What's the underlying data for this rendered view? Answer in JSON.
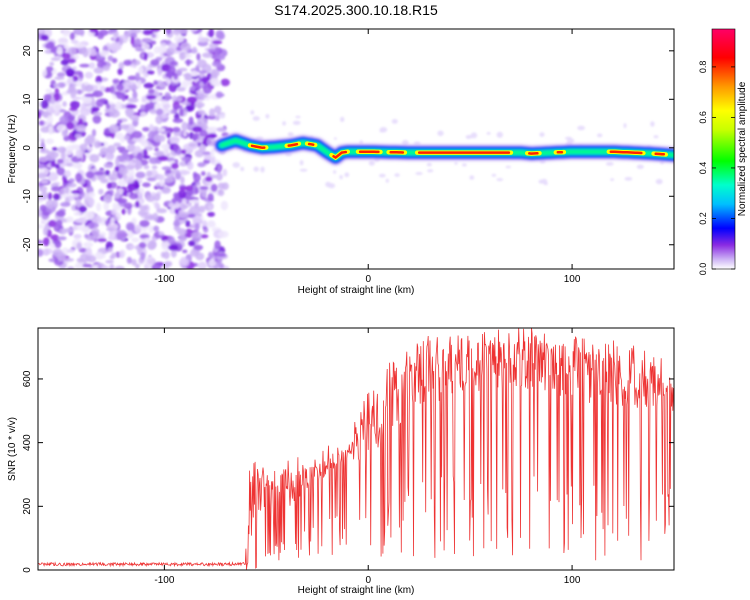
{
  "title": "S174.2025.300.10.18.R15",
  "chart_data": [
    {
      "type": "heatmap",
      "name": "spectrogram",
      "xlabel": "Height of straight line (km)",
      "ylabel": "Frequency (Hz)",
      "xlim": [
        -162,
        150
      ],
      "ylim": [
        -25,
        24.5
      ],
      "xticks": [
        -100,
        0,
        100
      ],
      "yticks": [
        -20,
        -10,
        0,
        10,
        20
      ],
      "xticklabels": [
        "-100",
        "0",
        "100"
      ],
      "yticklabels": [
        "-20",
        "-10",
        "0",
        "10",
        "20"
      ],
      "noise_region_x": [
        -162,
        -72
      ],
      "signal_start_x": -72,
      "ridge": {
        "x": [
          -72,
          -65,
          -58,
          -52,
          -45,
          -38,
          -32,
          -25,
          -20,
          -16,
          -13,
          -10,
          -5,
          0,
          20,
          50,
          75,
          80,
          90,
          100,
          120,
          140,
          150
        ],
        "freq": [
          0.5,
          1.5,
          0.5,
          0.0,
          0.2,
          0.5,
          1.0,
          0.5,
          -1.0,
          -2.0,
          -1.0,
          -0.8,
          -0.8,
          -0.8,
          -1.0,
          -1.0,
          -1.0,
          -1.2,
          -1.0,
          -0.8,
          -0.8,
          -1.2,
          -1.5
        ]
      },
      "colorbar": {
        "label": "Normalized spectral amplitude",
        "range": [
          0,
          0.95
        ],
        "ticks": [
          0.0,
          0.2,
          0.4,
          0.6,
          0.8
        ],
        "ticklabels": [
          "0.0",
          "0.2",
          "0.4",
          "0.6",
          "0.8"
        ],
        "colors": [
          "#ffffff",
          "#cdb4f5",
          "#8a2be2",
          "#0000ff",
          "#00bfff",
          "#00ffcc",
          "#00ff00",
          "#c8ff00",
          "#ffff00",
          "#ff9900",
          "#ff0000",
          "#ff0066"
        ]
      }
    },
    {
      "type": "line",
      "name": "snr",
      "xlabel": "Height of straight line (km)",
      "ylabel": "SNR (10 * v/v)",
      "xlim": [
        -162,
        150
      ],
      "ylim": [
        0,
        760
      ],
      "xticks": [
        -100,
        0,
        100
      ],
      "yticks": [
        0,
        200,
        400,
        600
      ],
      "xticklabels": [
        "-100",
        "0",
        "100"
      ],
      "yticklabels": [
        "0",
        "200",
        "400",
        "600"
      ],
      "color": "#ee3333",
      "envelope": {
        "x": [
          -162,
          -70,
          -60,
          -58,
          -50,
          -40,
          -30,
          -20,
          -10,
          0,
          10,
          20,
          30,
          40,
          60,
          80,
          100,
          110,
          120,
          140,
          150
        ],
        "base": [
          18,
          18,
          20,
          100,
          140,
          190,
          250,
          300,
          330,
          340,
          400,
          480,
          520,
          540,
          560,
          560,
          540,
          520,
          520,
          500,
          480
        ],
        "peak": [
          25,
          25,
          40,
          310,
          280,
          320,
          320,
          350,
          380,
          520,
          610,
          670,
          700,
          700,
          720,
          720,
          700,
          680,
          680,
          650,
          620
        ]
      }
    }
  ]
}
